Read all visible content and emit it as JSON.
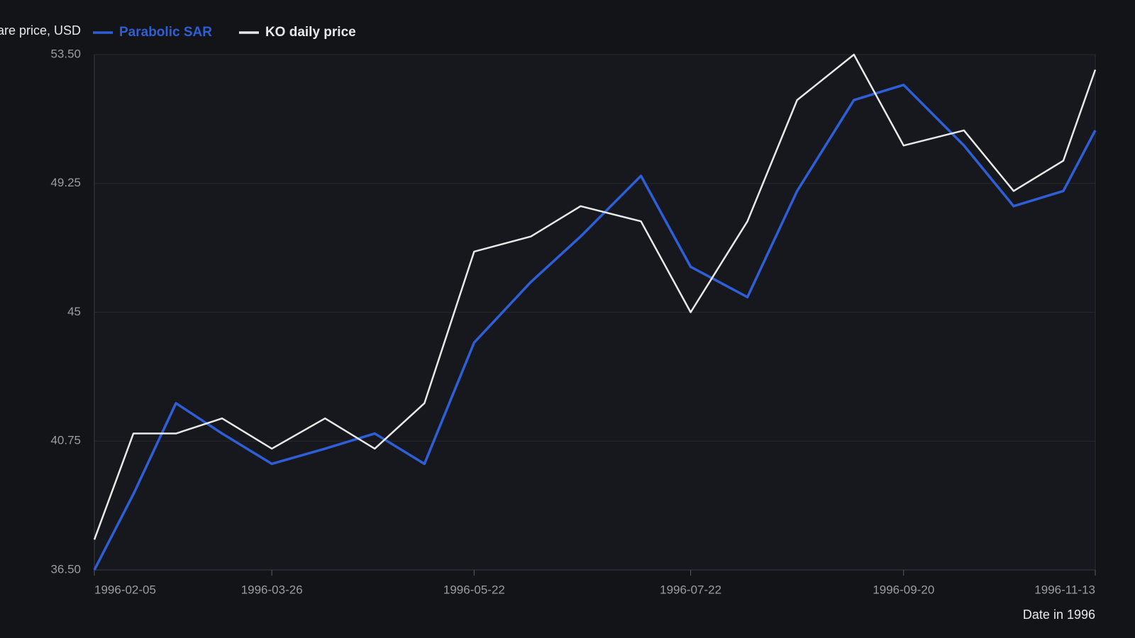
{
  "chart_data": {
    "type": "line",
    "y_label": "Share price, USD",
    "x_label": "Date in 1996",
    "x": [
      "1996-02-05",
      "1996-02-16",
      "1996-02-28",
      "1996-03-12",
      "1996-03-26",
      "1996-04-10",
      "1996-04-24",
      "1996-05-08",
      "1996-05-22",
      "1996-06-07",
      "1996-06-21",
      "1996-07-08",
      "1996-07-22",
      "1996-08-07",
      "1996-08-21",
      "1996-09-06",
      "1996-09-20",
      "1996-10-07",
      "1996-10-21",
      "1996-11-04",
      "1996-11-13"
    ],
    "series": [
      {
        "name": "Parabolic SAR",
        "color": "#2f5fd6",
        "values": [
          36.5,
          39.0,
          42.0,
          41.0,
          40.0,
          40.5,
          41.0,
          40.0,
          44.0,
          46.0,
          47.5,
          49.5,
          46.5,
          45.5,
          49.0,
          52.0,
          52.5,
          50.5,
          48.5,
          49.0,
          51.0
        ]
      },
      {
        "name": "KO daily price",
        "color": "#e8e8e8",
        "values": [
          37.5,
          41.0,
          41.0,
          41.5,
          40.5,
          41.5,
          40.5,
          42.0,
          47.0,
          47.5,
          48.5,
          48.0,
          45.0,
          48.0,
          52.0,
          53.5,
          50.5,
          51.0,
          49.0,
          50.0,
          53.0
        ]
      }
    ],
    "xlim": [
      "1996-02-05",
      "1996-11-13"
    ],
    "xticks": [
      "1996-02-05",
      "1996-03-26",
      "1996-05-22",
      "1996-07-22",
      "1996-09-20",
      "1996-11-13"
    ],
    "ylim": [
      36.5,
      53.5
    ],
    "yticks": [
      {
        "value": 36.5,
        "label": "36.50"
      },
      40.75,
      45,
      49.25,
      {
        "value": 53.5,
        "label": "53.50"
      }
    ],
    "grid": true
  }
}
